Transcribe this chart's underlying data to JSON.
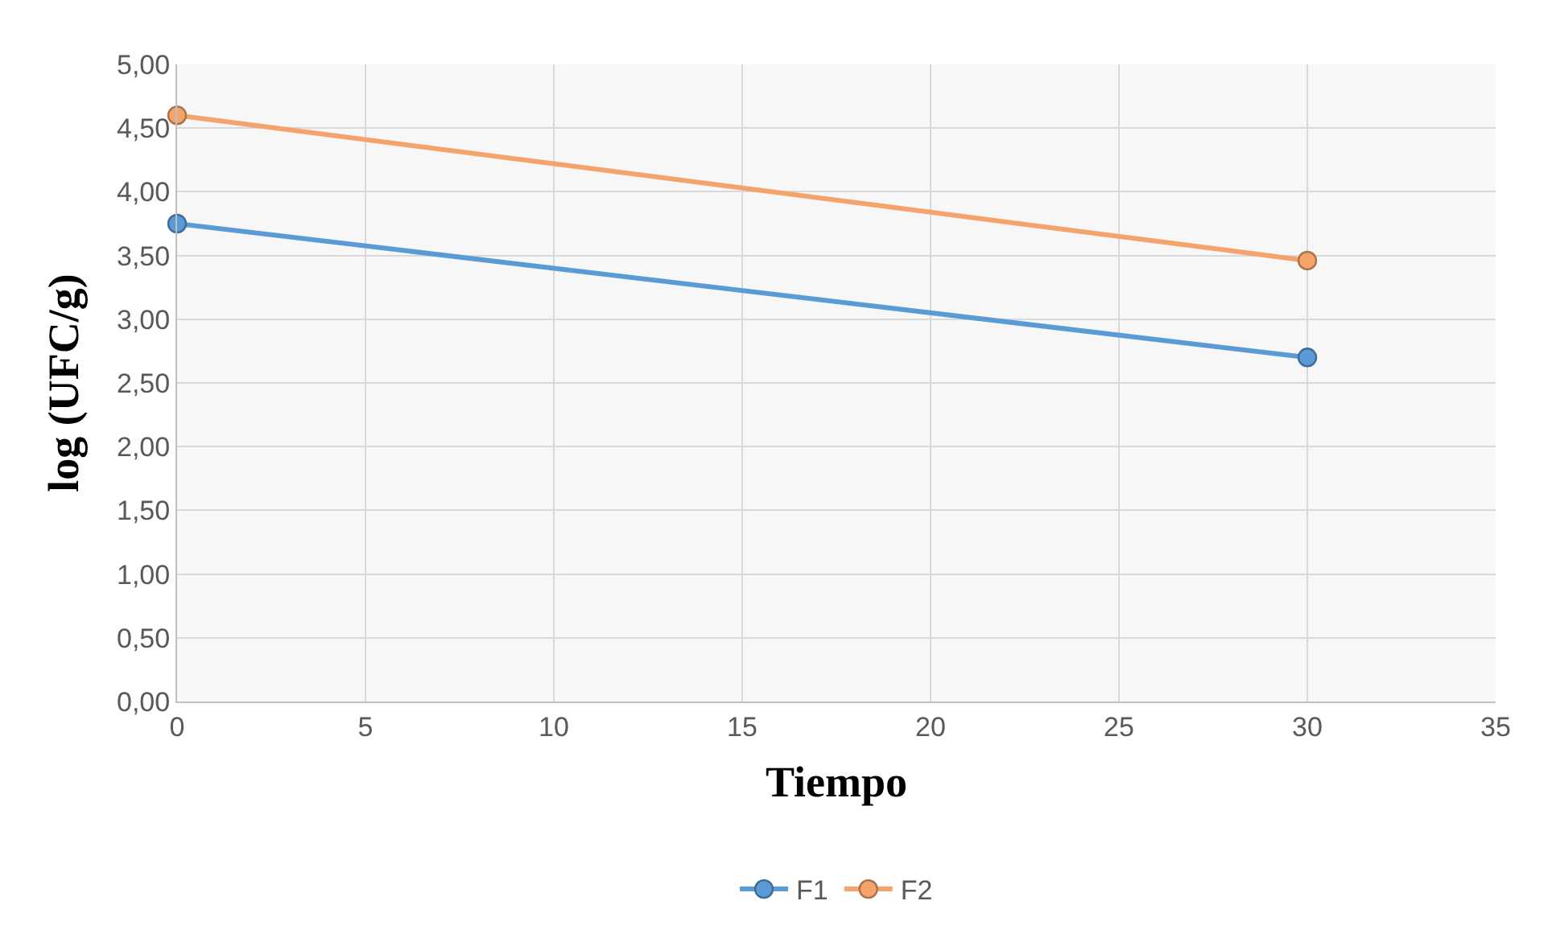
{
  "chart_data": {
    "type": "line",
    "xlabel": "Tiempo",
    "ylabel": "log (UFC/g)",
    "x": [
      0,
      30
    ],
    "series": [
      {
        "name": "F1",
        "color": "#5b9bd5",
        "values": [
          3.75,
          2.7
        ]
      },
      {
        "name": "F2",
        "color": "#f4a46a",
        "values": [
          4.6,
          3.46
        ]
      }
    ],
    "xlim": [
      0,
      35
    ],
    "xticks": [
      0,
      5,
      10,
      15,
      20,
      25,
      30,
      35
    ],
    "ylim": [
      0,
      5
    ],
    "yticks": [
      {
        "value": 0,
        "label": "0,00"
      },
      {
        "value": 0.5,
        "label": "0,50"
      },
      {
        "value": 1,
        "label": "1,00"
      },
      {
        "value": 1.5,
        "label": "1,50"
      },
      {
        "value": 2,
        "label": "2,00"
      },
      {
        "value": 2.5,
        "label": "2,50"
      },
      {
        "value": 3,
        "label": "3,00"
      },
      {
        "value": 3.5,
        "label": "3,50"
      },
      {
        "value": 4,
        "label": "4,00"
      },
      {
        "value": 4.5,
        "label": "4,50"
      },
      {
        "value": 5,
        "label": "5,00"
      }
    ],
    "grid": true,
    "legend": "bottom",
    "marker": "circle",
    "line_style": "solid"
  }
}
